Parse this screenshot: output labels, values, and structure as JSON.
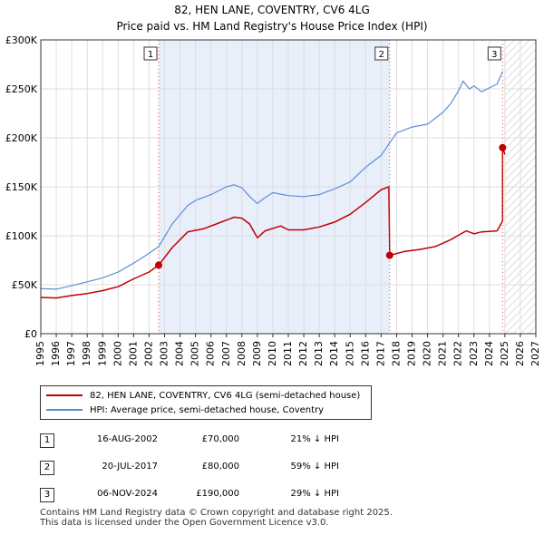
{
  "chart_data": {
    "type": "line",
    "title": "82, HEN LANE, COVENTRY, CV6 4LG",
    "subtitle": "Price paid vs. HM Land Registry's House Price Index (HPI)",
    "xlabel": "",
    "ylabel": "",
    "xlim": [
      1995,
      2027
    ],
    "ylim": [
      0,
      300000
    ],
    "x_ticks": [
      "1995",
      "1996",
      "1997",
      "1998",
      "1999",
      "2000",
      "2001",
      "2002",
      "2003",
      "2004",
      "2005",
      "2006",
      "2007",
      "2008",
      "2009",
      "2010",
      "2011",
      "2012",
      "2013",
      "2014",
      "2015",
      "2016",
      "2017",
      "2018",
      "2019",
      "2020",
      "2021",
      "2022",
      "2023",
      "2024",
      "2025",
      "2026",
      "2027"
    ],
    "y_ticks": [
      {
        "value": 0,
        "label": "£0"
      },
      {
        "value": 50000,
        "label": "£50K"
      },
      {
        "value": 100000,
        "label": "£100K"
      },
      {
        "value": 150000,
        "label": "£150K"
      },
      {
        "value": 200000,
        "label": "£200K"
      },
      {
        "value": 250000,
        "label": "£250K"
      },
      {
        "value": 300000,
        "label": "£300K"
      }
    ],
    "grid": true,
    "shaded_period": {
      "start": 2002.62,
      "end": 2017.55
    },
    "future_hatch_from": 2025.0,
    "series": [
      {
        "name": "82, HEN LANE, COVENTRY, CV6 4LG (semi-detached house)",
        "color": "#c00000",
        "points": [
          [
            1995.0,
            37000
          ],
          [
            1996.0,
            36500
          ],
          [
            1997.0,
            39000
          ],
          [
            1998.0,
            41000
          ],
          [
            1999.0,
            44000
          ],
          [
            2000.0,
            48000
          ],
          [
            2001.0,
            56000
          ],
          [
            2002.0,
            63000
          ],
          [
            2002.62,
            70000
          ],
          [
            2003.5,
            88000
          ],
          [
            2004.5,
            104000
          ],
          [
            2005.5,
            107000
          ],
          [
            2006.5,
            113000
          ],
          [
            2007.5,
            119000
          ],
          [
            2008.0,
            118000
          ],
          [
            2008.5,
            112000
          ],
          [
            2009.0,
            98000
          ],
          [
            2009.5,
            105000
          ],
          [
            2010.5,
            110000
          ],
          [
            2011.0,
            106000
          ],
          [
            2012.0,
            106000
          ],
          [
            2013.0,
            109000
          ],
          [
            2014.0,
            114000
          ],
          [
            2015.0,
            122000
          ],
          [
            2016.0,
            134000
          ],
          [
            2017.0,
            147000
          ],
          [
            2017.5,
            150000
          ],
          [
            2017.55,
            80000
          ],
          [
            2018.5,
            84000
          ],
          [
            2019.5,
            86000
          ],
          [
            2020.5,
            89000
          ],
          [
            2021.5,
            96000
          ],
          [
            2022.5,
            105000
          ],
          [
            2023.0,
            102000
          ],
          [
            2023.5,
            104000
          ],
          [
            2024.5,
            105000
          ],
          [
            2024.85,
            115000
          ],
          [
            2024.85,
            190000
          ],
          [
            2025.0,
            183000
          ]
        ]
      },
      {
        "name": "HPI: Average price, semi-detached house, Coventry",
        "color": "#5b8fd4",
        "points": [
          [
            1995.0,
            46000
          ],
          [
            1996.0,
            45500
          ],
          [
            1997.0,
            49000
          ],
          [
            1998.0,
            53000
          ],
          [
            1999.0,
            57000
          ],
          [
            2000.0,
            63000
          ],
          [
            2001.0,
            72000
          ],
          [
            2002.0,
            82000
          ],
          [
            2002.62,
            89000
          ],
          [
            2003.5,
            112000
          ],
          [
            2004.5,
            131000
          ],
          [
            2005.0,
            136000
          ],
          [
            2006.0,
            142000
          ],
          [
            2007.0,
            150000
          ],
          [
            2007.5,
            152000
          ],
          [
            2008.0,
            149000
          ],
          [
            2008.5,
            140000
          ],
          [
            2009.0,
            133000
          ],
          [
            2009.5,
            139000
          ],
          [
            2010.0,
            144000
          ],
          [
            2011.0,
            141000
          ],
          [
            2012.0,
            140000
          ],
          [
            2013.0,
            142000
          ],
          [
            2014.0,
            148000
          ],
          [
            2015.0,
            155000
          ],
          [
            2016.0,
            170000
          ],
          [
            2017.0,
            182000
          ],
          [
            2017.55,
            195000
          ],
          [
            2018.0,
            205000
          ],
          [
            2019.0,
            211000
          ],
          [
            2020.0,
            214000
          ],
          [
            2021.0,
            226000
          ],
          [
            2021.5,
            235000
          ],
          [
            2022.0,
            248000
          ],
          [
            2022.3,
            258000
          ],
          [
            2022.7,
            250000
          ],
          [
            2023.0,
            253000
          ],
          [
            2023.5,
            247000
          ],
          [
            2024.0,
            251000
          ],
          [
            2024.5,
            255000
          ],
          [
            2024.85,
            268000
          ]
        ]
      }
    ],
    "sale_markers": [
      {
        "label": "1",
        "x": 2002.62,
        "y": 70000
      },
      {
        "label": "2",
        "x": 2017.55,
        "y": 80000
      },
      {
        "label": "3",
        "x": 2024.85,
        "y": 190000
      }
    ]
  },
  "legend": {
    "property_label": "82, HEN LANE, COVENTRY, CV6 4LG (semi-detached house)",
    "hpi_label": "HPI: Average price, semi-detached house, Coventry"
  },
  "sales": [
    {
      "num": "1",
      "date": "16-AUG-2002",
      "price": "£70,000",
      "hpi": "21% ↓ HPI"
    },
    {
      "num": "2",
      "date": "20-JUL-2017",
      "price": "£80,000",
      "hpi": "59% ↓ HPI"
    },
    {
      "num": "3",
      "date": "06-NOV-2024",
      "price": "£190,000",
      "hpi": "29% ↓ HPI"
    }
  ],
  "footer": {
    "line1": "Contains HM Land Registry data © Crown copyright and database right 2025.",
    "line2": "This data is licensed under the Open Government Licence v3.0."
  }
}
